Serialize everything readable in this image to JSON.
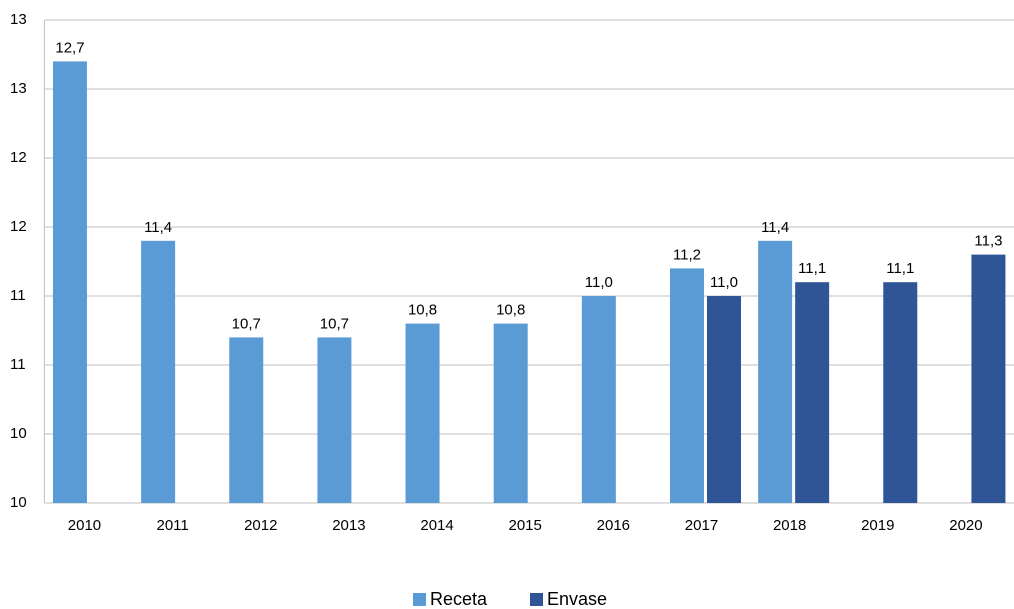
{
  "chart_data": {
    "type": "bar",
    "categories": [
      "2010",
      "2011",
      "2012",
      "2013",
      "2014",
      "2015",
      "2016",
      "2017",
      "2018",
      "2019",
      "2020"
    ],
    "series": [
      {
        "name": "Receta",
        "color": "#5b9bd5",
        "values": [
          12.7,
          11.4,
          10.7,
          10.7,
          10.8,
          10.8,
          11.0,
          11.2,
          11.4,
          null,
          null
        ],
        "value_labels": [
          "12,7",
          "11,4",
          "10,7",
          "10,7",
          "10,8",
          "10,8",
          "11,0",
          "11,2",
          "11,4",
          null,
          null
        ]
      },
      {
        "name": "Envase",
        "color": "#2f5597",
        "values": [
          null,
          null,
          null,
          null,
          null,
          null,
          null,
          11.0,
          11.1,
          11.1,
          11.3
        ],
        "value_labels": [
          null,
          null,
          null,
          null,
          null,
          null,
          null,
          "11,0",
          "11,1",
          "11,1",
          "11,3"
        ]
      }
    ],
    "ylim": [
      9.5,
      13
    ],
    "yticks": [
      {
        "value": 9.5,
        "label": "10"
      },
      10,
      {
        "value": 10.5,
        "label": "11"
      },
      11,
      {
        "value": 11.5,
        "label": "12"
      },
      12,
      {
        "value": 12.5,
        "label": "13"
      },
      13
    ],
    "grid": true,
    "legend": "bottom"
  }
}
